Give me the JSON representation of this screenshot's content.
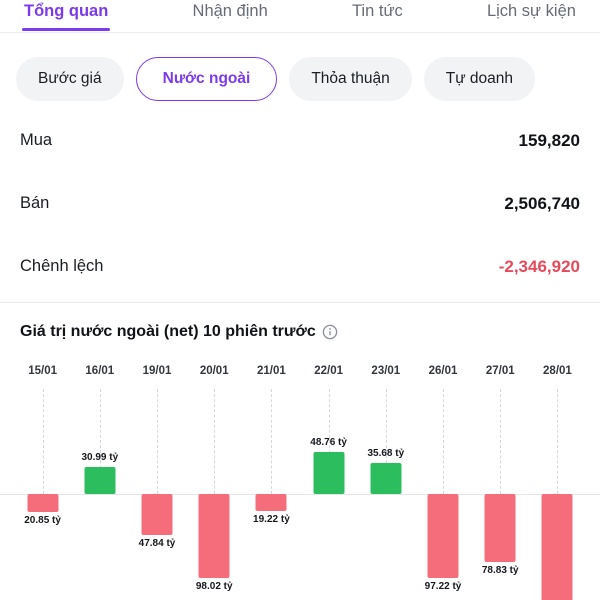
{
  "colors": {
    "accent": "#7C3AED",
    "negative_text": "#E64A5B",
    "bar_positive": "#2BBD5E",
    "bar_negative": "#F56D7B"
  },
  "tabs": [
    {
      "label": "Tổng quan",
      "active": true
    },
    {
      "label": "Nhận định",
      "active": false
    },
    {
      "label": "Tin tức",
      "active": false
    },
    {
      "label": "Lịch sự kiện",
      "active": false
    }
  ],
  "filters": [
    {
      "label": "Bước giá",
      "selected": false
    },
    {
      "label": "Nước ngoài",
      "selected": true
    },
    {
      "label": "Thỏa thuận",
      "selected": false
    },
    {
      "label": "Tự doanh",
      "selected": false
    }
  ],
  "stats": [
    {
      "label": "Mua",
      "value": "159,820"
    },
    {
      "label": "Bán",
      "value": "2,506,740"
    },
    {
      "label": "Chênh lệch",
      "value": "-2,346,920"
    }
  ],
  "section": {
    "title": "Giá trị nước ngoài (net) 10 phiên trước"
  },
  "chart_data": {
    "type": "bar",
    "title": "Giá trị nước ngoài (net) 10 phiên trước",
    "unit": "tỷ",
    "categories": [
      "15/01",
      "16/01",
      "19/01",
      "20/01",
      "21/01",
      "22/01",
      "23/01",
      "26/01",
      "27/01",
      "28/01"
    ],
    "values": [
      -20.85,
      30.99,
      -47.84,
      -98.02,
      -19.22,
      48.76,
      35.68,
      -97.22,
      -78.83,
      -135
    ],
    "labels": [
      "20.85 tỷ",
      "30.99 tỷ",
      "47.84 tỷ",
      "98.02 tỷ",
      "19.22 tỷ",
      "48.76 tỷ",
      "35.68 tỷ",
      "97.22 tỷ",
      "78.83 tỷ",
      ""
    ],
    "note": "last bar (28/01) clipped at bottom edge, value label not visible",
    "axis": {
      "date_axis_position": "top",
      "baseline": 0,
      "gridlines": "vertical-dashed"
    },
    "positive_color": "#2BBD5E",
    "negative_color": "#F56D7B"
  }
}
